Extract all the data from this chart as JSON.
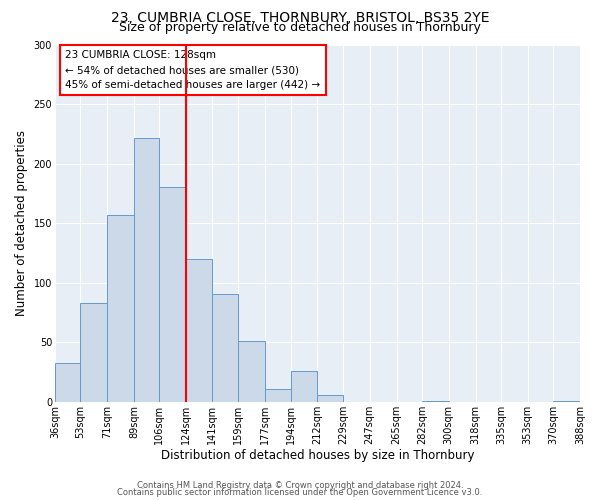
{
  "title": "23, CUMBRIA CLOSE, THORNBURY, BRISTOL, BS35 2YE",
  "subtitle": "Size of property relative to detached houses in Thornbury",
  "xlabel": "Distribution of detached houses by size in Thornbury",
  "ylabel": "Number of detached properties",
  "bin_edges": [
    36,
    53,
    71,
    89,
    106,
    124,
    141,
    159,
    177,
    194,
    212,
    229,
    247,
    265,
    282,
    300,
    318,
    335,
    353,
    370,
    388
  ],
  "bin_labels": [
    "36sqm",
    "53sqm",
    "71sqm",
    "89sqm",
    "106sqm",
    "124sqm",
    "141sqm",
    "159sqm",
    "177sqm",
    "194sqm",
    "212sqm",
    "229sqm",
    "247sqm",
    "265sqm",
    "282sqm",
    "300sqm",
    "318sqm",
    "335sqm",
    "353sqm",
    "370sqm",
    "388sqm"
  ],
  "counts": [
    33,
    83,
    157,
    222,
    181,
    120,
    91,
    51,
    11,
    26,
    6,
    0,
    0,
    0,
    1,
    0,
    0,
    0,
    0,
    1
  ],
  "bar_color": "#ccd9e8",
  "bar_edge_color": "#6699cc",
  "vline_x": 124,
  "vline_color": "red",
  "annotation_title": "23 CUMBRIA CLOSE: 128sqm",
  "annotation_line1": "← 54% of detached houses are smaller (530)",
  "annotation_line2": "45% of semi-detached houses are larger (442) →",
  "annotation_box_color": "red",
  "ylim": [
    0,
    300
  ],
  "yticks": [
    0,
    50,
    100,
    150,
    200,
    250,
    300
  ],
  "footer1": "Contains HM Land Registry data © Crown copyright and database right 2024.",
  "footer2": "Contains public sector information licensed under the Open Government Licence v3.0.",
  "bg_color": "#ffffff",
  "plot_bg_color": "#e8eef5",
  "grid_color": "#ffffff",
  "title_fontsize": 10,
  "subtitle_fontsize": 9,
  "label_fontsize": 8.5,
  "tick_fontsize": 7,
  "annot_fontsize": 7.5,
  "footer_fontsize": 6
}
